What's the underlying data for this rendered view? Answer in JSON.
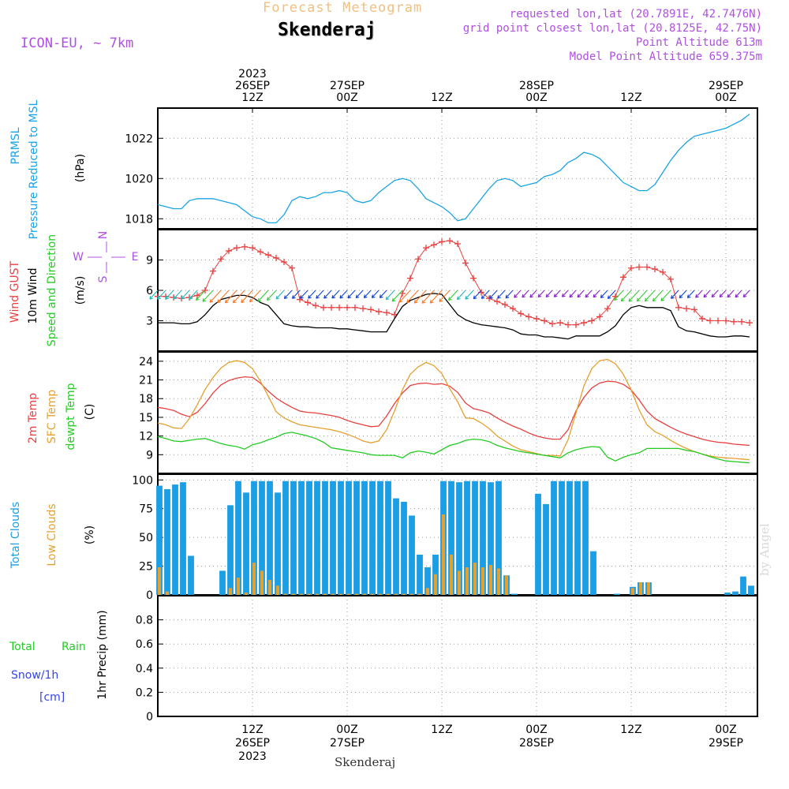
{
  "header": {
    "super_title": "Forecast Meteogram",
    "location": "Skenderaj",
    "model": "ICON-EU, ~ 7km",
    "requested": "requested lon,lat (20.7891E, 42.7476N)",
    "grid_point": "grid point closest lon,lat (20.8125E, 42.75N)",
    "point_alt": "Point Altitude 613m",
    "model_alt": "Model Point Altitude 659.375m"
  },
  "footer": {
    "location": "Skenderaj",
    "watermark": "by Angel"
  },
  "colors": {
    "prmsl": "#1aa3e6",
    "gust": "#e84040",
    "wind": "#000000",
    "arrow_green": "#22cc22",
    "temp2m": "#e84040",
    "sfc": "#e6a030",
    "dewpt": "#22cc22",
    "total_clouds": "#1a9ee6",
    "low_clouds": "#e6a030",
    "rain": "#22cc22",
    "snow": "#3344ee",
    "title": "#f0c080",
    "meta": "#b050e0"
  },
  "time_axis": {
    "top_labels": [
      {
        "t": 12,
        "lines": [
          "2023",
          "26SEP",
          "12Z"
        ]
      },
      {
        "t": 24,
        "lines": [
          "27SEP",
          "00Z"
        ]
      },
      {
        "t": 36,
        "lines": [
          "12Z"
        ]
      },
      {
        "t": 48,
        "lines": [
          "28SEP",
          "00Z"
        ]
      },
      {
        "t": 60,
        "lines": [
          "12Z"
        ]
      },
      {
        "t": 72,
        "lines": [
          "29SEP",
          "00Z"
        ]
      }
    ],
    "bottom_labels": [
      {
        "t": 12,
        "lines": [
          "12Z",
          "26SEP",
          "2023"
        ]
      },
      {
        "t": 24,
        "lines": [
          "00Z",
          "27SEP"
        ]
      },
      {
        "t": 36,
        "lines": [
          "12Z"
        ]
      },
      {
        "t": 48,
        "lines": [
          "00Z",
          "28SEP"
        ]
      },
      {
        "t": 60,
        "lines": [
          "12Z"
        ]
      },
      {
        "t": 72,
        "lines": [
          "00Z",
          "29SEP"
        ]
      }
    ]
  },
  "axis_labels": {
    "prmsl": [
      "PRMSL",
      "Pressure Reduced to MSL",
      "(hPa)"
    ],
    "wind": [
      "Wind GUST",
      "10m Wind",
      "Speed and Direction",
      "(m/s)"
    ],
    "temp": [
      "2m Temp",
      "SFC Temp",
      "dewpt Temp",
      "(C)"
    ],
    "clouds": [
      "Total Clouds",
      "Low Clouds",
      "(%)"
    ],
    "precip": [
      "1hr Precip (mm)"
    ],
    "precip_legend": [
      "Total",
      "Rain",
      "Snow/1h",
      "[cm]"
    ],
    "compass": [
      "N",
      "W",
      "E",
      "S"
    ]
  },
  "chart_data": [
    {
      "name": "prmsl",
      "type": "line",
      "ylim": [
        1017.5,
        1023.5
      ],
      "yticks": [
        1018,
        1020,
        1022
      ],
      "x": [
        0,
        1,
        2,
        3,
        4,
        5,
        6,
        7,
        8,
        9,
        10,
        11,
        12,
        13,
        14,
        15,
        16,
        17,
        18,
        19,
        20,
        21,
        22,
        23,
        24,
        25,
        26,
        27,
        28,
        29,
        30,
        31,
        32,
        33,
        34,
        35,
        36,
        37,
        38,
        39,
        40,
        41,
        42,
        43,
        44,
        45,
        46,
        47,
        48,
        49,
        50,
        51,
        52,
        53,
        54,
        55,
        56,
        57,
        58,
        59,
        60,
        61,
        62,
        63,
        64,
        65,
        66,
        67,
        68,
        69,
        70,
        71,
        72,
        73,
        74,
        75
      ],
      "series": [
        {
          "values": [
            1018.7,
            1018.6,
            1018.5,
            1018.5,
            1018.9,
            1019.0,
            1019.0,
            1019.0,
            1018.9,
            1018.8,
            1018.7,
            1018.4,
            1018.1,
            1018.0,
            1017.8,
            1017.8,
            1018.2,
            1018.9,
            1019.1,
            1019.0,
            1019.1,
            1019.3,
            1019.3,
            1019.4,
            1019.3,
            1018.9,
            1018.8,
            1018.9,
            1019.3,
            1019.6,
            1019.9,
            1020.0,
            1019.9,
            1019.5,
            1019.0,
            1018.8,
            1018.6,
            1018.3,
            1017.9,
            1018.0,
            1018.5,
            1019.0,
            1019.5,
            1019.9,
            1020.0,
            1019.9,
            1019.6,
            1019.7,
            1019.8,
            1020.1,
            1020.2,
            1020.4,
            1020.8,
            1021.0,
            1021.3,
            1021.2,
            1021.0,
            1020.6,
            1020.2,
            1019.8,
            1019.6,
            1019.4,
            1019.4,
            1019.7,
            1020.3,
            1020.9,
            1021.4,
            1021.8,
            1022.1,
            1022.2,
            1022.3,
            1022.4,
            1022.5,
            1022.7,
            1022.9,
            1023.2
          ]
        }
      ]
    },
    {
      "name": "wind",
      "type": "line",
      "ylim": [
        0,
        12
      ],
      "yticks": [
        3,
        6,
        9
      ],
      "x": [
        0,
        1,
        2,
        3,
        4,
        5,
        6,
        7,
        8,
        9,
        10,
        11,
        12,
        13,
        14,
        15,
        16,
        17,
        18,
        19,
        20,
        21,
        22,
        23,
        24,
        25,
        26,
        27,
        28,
        29,
        30,
        31,
        32,
        33,
        34,
        35,
        36,
        37,
        38,
        39,
        40,
        41,
        42,
        43,
        44,
        45,
        46,
        47,
        48,
        49,
        50,
        51,
        52,
        53,
        54,
        55,
        56,
        57,
        58,
        59,
        60,
        61,
        62,
        63,
        64,
        65,
        66,
        67,
        68,
        69,
        70,
        71,
        72,
        73,
        74,
        75
      ],
      "series": [
        {
          "name": "Wind GUST",
          "values": [
            5.4,
            5.4,
            5.3,
            5.2,
            5.3,
            5.5,
            6.0,
            7.9,
            9.1,
            9.9,
            10.2,
            10.3,
            10.2,
            9.8,
            9.5,
            9.2,
            8.8,
            8.2,
            5.1,
            4.8,
            4.5,
            4.3,
            4.3,
            4.3,
            4.3,
            4.3,
            4.2,
            4.1,
            3.9,
            3.8,
            3.6,
            5.7,
            7.2,
            9.1,
            10.2,
            10.5,
            10.8,
            10.9,
            10.6,
            8.7,
            7.2,
            5.8,
            5.2,
            4.9,
            4.6,
            4.2,
            3.7,
            3.4,
            3.2,
            3.0,
            2.7,
            2.8,
            2.6,
            2.6,
            2.8,
            3.0,
            3.4,
            4.2,
            5.4,
            7.3,
            8.2,
            8.3,
            8.3,
            8.1,
            7.8,
            7.1,
            4.3,
            4.2,
            4.1,
            3.2,
            3.0,
            3.0,
            3.0,
            2.9,
            2.9,
            2.8
          ]
        },
        {
          "name": "10m Wind",
          "values": [
            2.8,
            2.8,
            2.8,
            2.7,
            2.7,
            2.9,
            3.6,
            4.5,
            5.1,
            5.3,
            5.5,
            5.5,
            5.3,
            4.8,
            4.5,
            3.6,
            2.7,
            2.5,
            2.4,
            2.4,
            2.3,
            2.3,
            2.3,
            2.2,
            2.2,
            2.1,
            2.0,
            1.9,
            1.9,
            1.9,
            3.2,
            4.4,
            5.0,
            5.3,
            5.6,
            5.7,
            5.6,
            4.6,
            3.6,
            3.1,
            2.8,
            2.6,
            2.5,
            2.4,
            2.3,
            2.1,
            1.7,
            1.6,
            1.6,
            1.4,
            1.4,
            1.3,
            1.2,
            1.5,
            1.5,
            1.5,
            1.5,
            1.9,
            2.5,
            3.6,
            4.3,
            4.5,
            4.3,
            4.3,
            4.3,
            4.0,
            2.4,
            2.0,
            1.9,
            1.7,
            1.5,
            1.4,
            1.4,
            1.5,
            1.5,
            1.4
          ]
        }
      ]
    },
    {
      "name": "temperature",
      "type": "line",
      "ylim": [
        6,
        25.5
      ],
      "yticks": [
        9,
        12,
        15,
        18,
        21,
        24
      ],
      "x": [
        0,
        1,
        2,
        3,
        4,
        5,
        6,
        7,
        8,
        9,
        10,
        11,
        12,
        13,
        14,
        15,
        16,
        17,
        18,
        19,
        20,
        21,
        22,
        23,
        24,
        25,
        26,
        27,
        28,
        29,
        30,
        31,
        32,
        33,
        34,
        35,
        36,
        37,
        38,
        39,
        40,
        41,
        42,
        43,
        44,
        45,
        46,
        47,
        48,
        49,
        50,
        51,
        52,
        53,
        54,
        55,
        56,
        57,
        58,
        59,
        60,
        61,
        62,
        63,
        64,
        65,
        66,
        67,
        68,
        69,
        70,
        71,
        72,
        73,
        74,
        75
      ],
      "series": [
        {
          "name": "2m Temp",
          "values": [
            16.6,
            16.4,
            16.1,
            15.5,
            15.1,
            15.8,
            17.2,
            18.9,
            20.2,
            20.9,
            21.3,
            21.5,
            21.4,
            20.5,
            19.2,
            18.1,
            17.3,
            16.6,
            16.0,
            15.8,
            15.7,
            15.5,
            15.3,
            15.0,
            14.5,
            14.1,
            13.8,
            13.5,
            13.6,
            15.2,
            17.2,
            18.9,
            20.1,
            20.4,
            20.5,
            20.3,
            20.4,
            20.0,
            19.0,
            17.3,
            16.4,
            16.1,
            15.7,
            14.9,
            14.2,
            13.6,
            13.1,
            12.5,
            12.0,
            11.7,
            11.5,
            11.5,
            13.0,
            16.0,
            18.2,
            19.7,
            20.5,
            20.8,
            20.7,
            20.3,
            19.4,
            17.8,
            16.0,
            14.8,
            14.1,
            13.4,
            12.8,
            12.3,
            11.9,
            11.5,
            11.2,
            11.0,
            10.9,
            10.7,
            10.6,
            10.5
          ]
        },
        {
          "name": "SFC Temp",
          "values": [
            14.1,
            13.8,
            13.3,
            13.2,
            14.8,
            17.0,
            19.5,
            21.4,
            22.9,
            23.8,
            24.1,
            23.8,
            22.8,
            20.8,
            18.4,
            15.9,
            14.9,
            14.3,
            13.8,
            13.6,
            13.4,
            13.2,
            13.0,
            12.7,
            12.3,
            11.8,
            11.2,
            10.9,
            11.2,
            13.0,
            16.0,
            19.4,
            21.9,
            23.1,
            23.8,
            23.3,
            22.0,
            19.6,
            17.5,
            14.9,
            14.8,
            14.1,
            13.2,
            12.0,
            11.2,
            10.4,
            9.8,
            9.5,
            9.2,
            8.9,
            8.9,
            8.8,
            11.4,
            15.7,
            20.0,
            22.8,
            24.1,
            24.3,
            23.6,
            21.9,
            19.4,
            16.2,
            13.8,
            12.7,
            12.1,
            11.3,
            10.6,
            10.0,
            9.5,
            9.1,
            8.8,
            8.6,
            8.5,
            8.4,
            8.3,
            8.2
          ]
        },
        {
          "name": "dewpt Temp",
          "values": [
            11.9,
            11.6,
            11.2,
            11.1,
            11.3,
            11.5,
            11.6,
            11.2,
            10.8,
            10.5,
            10.3,
            9.9,
            10.6,
            10.9,
            11.4,
            11.8,
            12.4,
            12.6,
            12.3,
            12.0,
            11.6,
            11.0,
            10.1,
            9.9,
            9.7,
            9.5,
            9.3,
            9.0,
            8.9,
            8.9,
            8.9,
            8.5,
            9.3,
            9.6,
            9.4,
            9.1,
            9.8,
            10.5,
            10.8,
            11.3,
            11.5,
            11.4,
            11.1,
            10.5,
            10.1,
            9.8,
            9.5,
            9.3,
            9.1,
            8.9,
            8.7,
            8.5,
            9.3,
            9.8,
            10.1,
            10.3,
            10.2,
            8.6,
            8.0,
            8.6,
            9.0,
            9.3,
            10.0,
            10.0,
            10.0,
            10.0,
            10.0,
            9.7,
            9.5,
            9.1,
            8.7,
            8.3,
            8.0,
            7.9,
            7.8,
            7.7
          ]
        }
      ]
    },
    {
      "name": "clouds",
      "type": "bar",
      "ylim": [
        0,
        105
      ],
      "yticks": [
        0,
        25,
        50,
        75,
        100
      ],
      "x": [
        0,
        1,
        2,
        3,
        4,
        5,
        6,
        7,
        8,
        9,
        10,
        11,
        12,
        13,
        14,
        15,
        16,
        17,
        18,
        19,
        20,
        21,
        22,
        23,
        24,
        25,
        26,
        27,
        28,
        29,
        30,
        31,
        32,
        33,
        34,
        35,
        36,
        37,
        38,
        39,
        40,
        41,
        42,
        43,
        44,
        45,
        46,
        47,
        48,
        49,
        50,
        51,
        52,
        53,
        54,
        55,
        56,
        57,
        58,
        59,
        60,
        61,
        62,
        63,
        64,
        65,
        66,
        67,
        68,
        69,
        70,
        71,
        72,
        73,
        74,
        75
      ],
      "series": [
        {
          "name": "Total Clouds",
          "values": [
            95,
            92,
            96,
            98,
            34,
            0,
            0,
            0,
            21,
            78,
            99,
            89,
            99,
            99,
            99,
            89,
            99,
            99,
            99,
            99,
            99,
            99,
            99,
            99,
            99,
            99,
            99,
            99,
            99,
            99,
            84,
            81,
            69,
            35,
            24,
            35,
            99,
            99,
            98,
            99,
            99,
            99,
            98,
            99,
            17,
            1,
            0,
            0,
            88,
            79,
            99,
            99,
            99,
            99,
            99,
            38,
            0,
            0,
            1,
            0,
            7,
            11,
            11,
            0,
            0,
            0,
            0,
            0,
            0,
            0,
            0,
            0,
            2,
            3,
            16,
            8
          ]
        },
        {
          "name": "Low Clouds",
          "values": [
            24,
            3,
            0,
            0,
            0,
            0,
            0,
            0,
            0,
            6,
            15,
            2,
            28,
            21,
            13,
            8,
            1,
            1,
            1,
            1,
            1,
            1,
            1,
            1,
            1,
            1,
            1,
            1,
            1,
            1,
            1,
            1,
            1,
            1,
            6,
            18,
            70,
            35,
            21,
            24,
            28,
            24,
            26,
            23,
            17,
            0,
            0,
            0,
            0,
            0,
            0,
            0,
            0,
            0,
            0,
            0,
            0,
            0,
            0,
            0,
            6,
            11,
            11,
            0,
            0,
            0,
            0,
            0,
            0,
            0,
            0,
            0,
            0,
            0,
            0,
            0
          ]
        }
      ]
    },
    {
      "name": "precip",
      "type": "line",
      "ylim": [
        0,
        1.0
      ],
      "yticks": [
        0,
        0.2,
        0.4,
        0.6,
        0.8
      ],
      "ytick_labels": [
        "0",
        "0.2",
        "0.4",
        "0.6",
        "0.8"
      ],
      "x": [
        0,
        75
      ],
      "series": [
        {
          "name": "Total Rain",
          "values": [
            0,
            0
          ]
        }
      ]
    }
  ]
}
